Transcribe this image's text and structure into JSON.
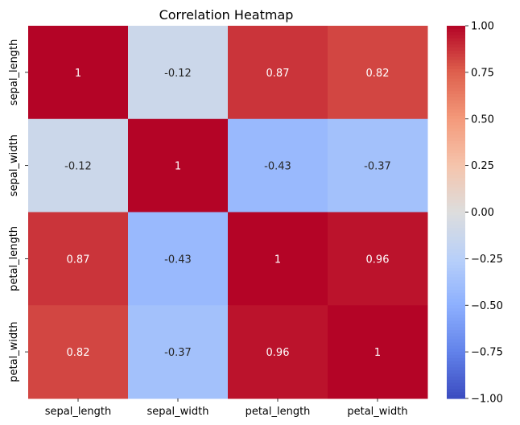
{
  "chart_data": {
    "type": "heatmap",
    "title": "Correlation Heatmap",
    "rows": [
      "sepal_length",
      "sepal_width",
      "petal_length",
      "petal_width"
    ],
    "columns": [
      "sepal_length",
      "sepal_width",
      "petal_length",
      "petal_width"
    ],
    "values": [
      [
        1,
        -0.12,
        0.87,
        0.82
      ],
      [
        -0.12,
        1,
        -0.43,
        -0.37
      ],
      [
        0.87,
        -0.43,
        1,
        0.96
      ],
      [
        0.82,
        -0.37,
        0.96,
        1
      ]
    ],
    "cell_labels": [
      [
        "1",
        "-0.12",
        "0.87",
        "0.82"
      ],
      [
        "-0.12",
        "1",
        "-0.43",
        "-0.37"
      ],
      [
        "0.87",
        "-0.43",
        "1",
        "0.96"
      ],
      [
        "0.82",
        "-0.37",
        "0.96",
        "1"
      ]
    ],
    "colormap": "coolwarm",
    "color_range": [
      -1.0,
      1.0
    ],
    "colorbar_ticks": [
      "1.00",
      "0.75",
      "0.50",
      "0.25",
      "0.00",
      "−0.25",
      "−0.50",
      "−0.75",
      "−1.00"
    ],
    "colorbar_tick_values": [
      1.0,
      0.75,
      0.5,
      0.25,
      0.0,
      -0.25,
      -0.5,
      -0.75,
      -1.0
    ],
    "colors": {
      "low": "#3b4cc0",
      "mid": "#dddddd",
      "high": "#b40426"
    }
  }
}
